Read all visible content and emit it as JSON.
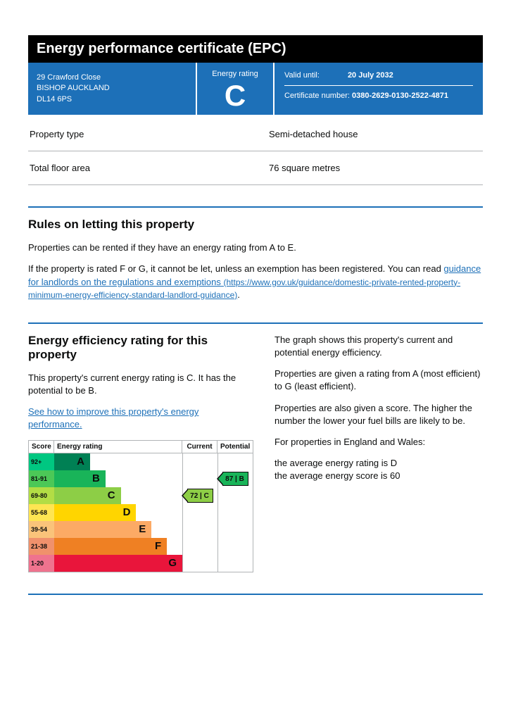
{
  "title": "Energy performance certificate (EPC)",
  "address": {
    "line1": "29 Crawford Close",
    "line2": "BISHOP AUCKLAND",
    "postcode": "DL14 6PS"
  },
  "rating_label": "Energy rating",
  "rating_letter": "C",
  "valid_label": "Valid until:",
  "valid_value": "20 July 2032",
  "cert_label": "Certificate number:",
  "cert_value": "0380-2629-0130-2522-4871",
  "kv": [
    {
      "k": "Property type",
      "v": "Semi-detached house"
    },
    {
      "k": "Total floor area",
      "v": "76 square metres"
    }
  ],
  "rules": {
    "heading": "Rules on letting this property",
    "p1": "Properties can be rented if they have an energy rating from A to E.",
    "p2_pre": "If the property is rated F or G, it cannot be let, unless an exemption has been registered. You can read ",
    "p2_link_text": "guidance for landlords on the regulations and exemptions ",
    "p2_link_url": "(https://www.gov.uk/guidance/domestic-private-rented-property-minimum-energy-efficiency-standard-landlord-guidance)",
    "p2_post": "."
  },
  "eff": {
    "heading": "Energy efficiency rating for this property",
    "p1": "This property's current energy rating is C. It has the potential to be B.",
    "link": "See how to improve this property's energy performance."
  },
  "right": {
    "p1": "The graph shows this property's current and potential energy efficiency.",
    "p2": "Properties are given a rating from A (most efficient) to G (least efficient).",
    "p3": "Properties are also given a score. The higher the number the lower your fuel bills are likely to be.",
    "p4": "For properties in England and Wales:",
    "p5a": "the average energy rating is D",
    "p5b": "the average energy score is 60"
  },
  "chart": {
    "head_score": "Score",
    "head_rating": "Energy rating",
    "head_current": "Current",
    "head_potential": "Potential",
    "bands": [
      {
        "range": "92+",
        "letter": "A",
        "width_pct": 28,
        "score_bg": "#00c781",
        "bar_bg": "#008054"
      },
      {
        "range": "81-91",
        "letter": "B",
        "width_pct": 40,
        "score_bg": "#4cc857",
        "bar_bg": "#19b459"
      },
      {
        "range": "69-80",
        "letter": "C",
        "width_pct": 52,
        "score_bg": "#b3dd45",
        "bar_bg": "#8dce46"
      },
      {
        "range": "55-68",
        "letter": "D",
        "width_pct": 64,
        "score_bg": "#ffe552",
        "bar_bg": "#ffd500"
      },
      {
        "range": "39-54",
        "letter": "E",
        "width_pct": 76,
        "score_bg": "#fac37a",
        "bar_bg": "#fcaa65"
      },
      {
        "range": "21-38",
        "letter": "F",
        "width_pct": 88,
        "score_bg": "#f0916c",
        "bar_bg": "#ef8023"
      },
      {
        "range": "1-20",
        "letter": "G",
        "width_pct": 100,
        "score_bg": "#ef738e",
        "bar_bg": "#e9153b"
      }
    ],
    "current": {
      "score": 72,
      "letter": "C",
      "band_index": 2,
      "bg": "#8dce46"
    },
    "potential": {
      "score": 87,
      "letter": "B",
      "band_index": 1,
      "bg": "#19b459"
    }
  },
  "colors": {
    "header_blue": "#1d70b8",
    "black": "#000000",
    "link": "#1d70b8",
    "border": "#b1b4b6"
  }
}
